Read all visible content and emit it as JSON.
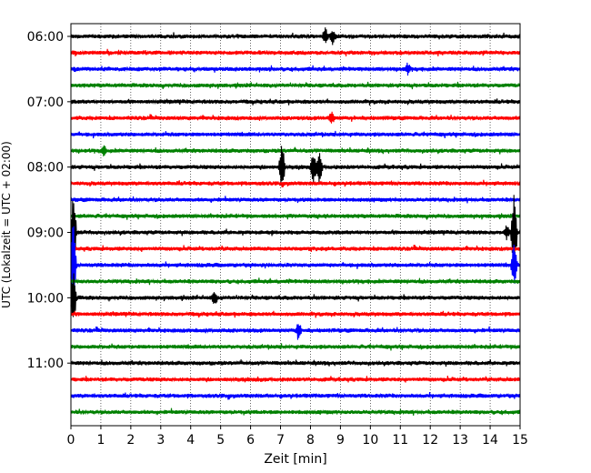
{
  "chart_data": {
    "type": "line",
    "title": "",
    "xlabel": "Zeit  [min]",
    "ylabel": "UTC (Lokalzeit = UTC + 02:00)",
    "xlim": [
      0,
      15
    ],
    "xticks": [
      0,
      1,
      2,
      3,
      4,
      5,
      6,
      7,
      8,
      9,
      10,
      11,
      12,
      13,
      14,
      15
    ],
    "grid": "vertical dotted",
    "trace_minutes_per_line": 15,
    "start_time": "06:00",
    "line_count": 24,
    "colors_cycle": [
      "#000000",
      "#ff0000",
      "#0000ff",
      "#008000"
    ],
    "yticks": [
      {
        "label": "06:00",
        "line_index": 0
      },
      {
        "label": "07:00",
        "line_index": 4
      },
      {
        "label": "08:00",
        "line_index": 8
      },
      {
        "label": "09:00",
        "line_index": 12
      },
      {
        "label": "10:00",
        "line_index": 16
      },
      {
        "label": "11:00",
        "line_index": 20
      }
    ],
    "events": [
      {
        "line": 0,
        "minute": 8.5,
        "amplitude": 0.45
      },
      {
        "line": 0,
        "minute": 8.75,
        "amplitude": 0.4
      },
      {
        "line": 2,
        "minute": 11.25,
        "amplitude": 0.3
      },
      {
        "line": 5,
        "minute": 8.7,
        "amplitude": 0.35
      },
      {
        "line": 7,
        "minute": 1.1,
        "amplitude": 0.3
      },
      {
        "line": 8,
        "minute": 7.05,
        "amplitude": 1.5
      },
      {
        "line": 8,
        "minute": 8.1,
        "amplitude": 1.1
      },
      {
        "line": 8,
        "minute": 8.3,
        "amplitude": 1.0
      },
      {
        "line": 12,
        "minute": 0.08,
        "amplitude": 2.6
      },
      {
        "line": 12,
        "minute": 14.55,
        "amplitude": 0.4
      },
      {
        "line": 12,
        "minute": 14.8,
        "amplitude": 2.6
      },
      {
        "line": 14,
        "minute": 0.08,
        "amplitude": 3.0
      },
      {
        "line": 14,
        "minute": 14.8,
        "amplitude": 1.3
      },
      {
        "line": 16,
        "minute": 4.8,
        "amplitude": 0.4
      },
      {
        "line": 16,
        "minute": 0.08,
        "amplitude": 1.8
      },
      {
        "line": 18,
        "minute": 7.6,
        "amplitude": 0.45
      }
    ]
  },
  "colors": {
    "black": "#000000",
    "red": "#ff0000",
    "blue": "#0000ff",
    "green": "#008000"
  }
}
